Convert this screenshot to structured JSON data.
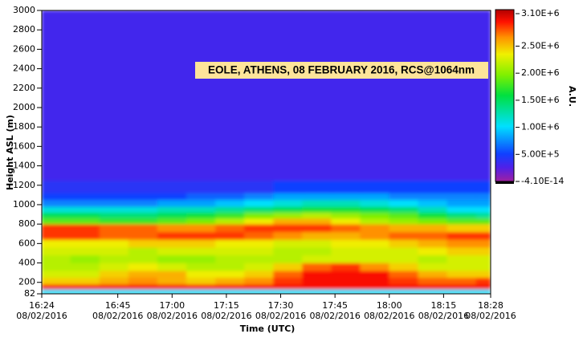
{
  "chart_data": {
    "type": "heatmap",
    "annotation": "EOLE, ATHENS, 08 FEBRUARY 2016, RCS@1064nm",
    "x_label": "Time (UTC)",
    "y_label": "Height ASL (m)",
    "colorbar_label": "A.U.",
    "x": [
      "2016-02-08T16:24",
      "2016-02-08T16:32",
      "2016-02-08T16:40",
      "2016-02-08T16:48",
      "2016-02-08T16:56",
      "2016-02-08T17:04",
      "2016-02-08T17:12",
      "2016-02-08T17:20",
      "2016-02-08T17:28",
      "2016-02-08T17:36",
      "2016-02-08T17:44",
      "2016-02-08T17:52",
      "2016-02-08T18:00",
      "2016-02-08T18:08",
      "2016-02-08T18:16",
      "2016-02-08T18:24",
      "2016-02-08T18:28"
    ],
    "y": [
      82,
      130,
      180,
      250,
      320,
      400,
      480,
      560,
      640,
      720,
      800,
      860,
      920,
      980,
      1050,
      1120,
      1250,
      3000
    ],
    "z": [
      [
        1000000,
        1000000,
        1000000,
        1000000,
        1000000,
        1000000,
        1000000,
        1000000,
        1000000,
        1000000,
        1000000,
        1000000,
        1000000,
        1000000,
        1000000,
        1000000
      ],
      [
        2900000,
        2900000,
        2900000,
        2900000,
        2900000,
        2900000,
        2900000,
        2900000,
        2900000,
        2900000,
        2900000,
        2900000,
        2900000,
        2900000,
        2900000,
        2900000
      ],
      [
        2400000,
        2400000,
        2500000,
        2600000,
        2500000,
        2400000,
        2500000,
        2600000,
        2800000,
        2900000,
        2900000,
        2900000,
        2800000,
        2700000,
        2700000,
        2800000
      ],
      [
        2200000,
        2200000,
        2400000,
        2500000,
        2500000,
        2300000,
        2300000,
        2400000,
        2700000,
        2900000,
        2900000,
        2900000,
        2700000,
        2500000,
        2400000,
        2400000
      ],
      [
        2100000,
        2100000,
        2200000,
        2300000,
        2200000,
        2100000,
        2100000,
        2200000,
        2400000,
        2700000,
        2800000,
        2600000,
        2400000,
        2200000,
        2200000,
        2200000
      ],
      [
        2100000,
        2000000,
        2100000,
        2100000,
        2000000,
        2000000,
        2100000,
        2100000,
        2100000,
        2200000,
        2200000,
        2200000,
        2200000,
        2100000,
        2200000,
        2200000
      ],
      [
        2200000,
        2200000,
        2200000,
        2100000,
        2200000,
        2200000,
        2200000,
        2200000,
        2100000,
        2100000,
        2200000,
        2200000,
        2200000,
        2300000,
        2400000,
        2400000
      ],
      [
        2300000,
        2300000,
        2300000,
        2400000,
        2400000,
        2400000,
        2300000,
        2300000,
        2200000,
        2200000,
        2300000,
        2300000,
        2400000,
        2500000,
        2600000,
        2600000
      ],
      [
        2800000,
        2800000,
        2700000,
        2700000,
        2800000,
        2800000,
        2800000,
        2700000,
        2600000,
        2500000,
        2500000,
        2600000,
        2700000,
        2700000,
        2800000,
        2800000
      ],
      [
        2800000,
        2800000,
        2700000,
        2700000,
        2600000,
        2600000,
        2700000,
        2800000,
        2800000,
        2800000,
        2700000,
        2600000,
        2500000,
        2500000,
        2400000,
        2400000
      ],
      [
        1800000,
        1800000,
        1700000,
        1700000,
        1800000,
        1900000,
        2100000,
        2300000,
        2500000,
        2500000,
        2300000,
        2100000,
        2000000,
        1900000,
        1800000,
        1800000
      ],
      [
        1500000,
        1500000,
        1400000,
        1400000,
        1500000,
        1600000,
        1700000,
        1900000,
        2000000,
        2100000,
        2000000,
        1900000,
        1800000,
        1600000,
        1400000,
        1300000
      ],
      [
        1100000,
        1100000,
        1100000,
        1100000,
        1200000,
        1200000,
        1300000,
        1400000,
        1500000,
        1600000,
        1600000,
        1500000,
        1400000,
        1200000,
        1000000,
        1000000
      ],
      [
        700000,
        700000,
        700000,
        700000,
        800000,
        800000,
        900000,
        1000000,
        1100000,
        1200000,
        1200000,
        1100000,
        1000000,
        900000,
        800000,
        800000
      ],
      [
        500000,
        500000,
        500000,
        500000,
        500000,
        600000,
        600000,
        700000,
        800000,
        800000,
        800000,
        800000,
        700000,
        700000,
        700000,
        700000
      ],
      [
        400000,
        400000,
        400000,
        400000,
        400000,
        400000,
        400000,
        400000,
        500000,
        500000,
        500000,
        500000,
        500000,
        500000,
        500000,
        500000
      ],
      [
        300000,
        300000,
        300000,
        300000,
        300000,
        300000,
        300000,
        300000,
        300000,
        300000,
        300000,
        300000,
        300000,
        300000,
        300000,
        300000
      ]
    ],
    "xlim": [
      "2016-02-08T16:24",
      "2016-02-08T18:28"
    ],
    "xticks": [
      {
        "value": "2016-02-08T16:24",
        "label": [
          "16:24",
          "08/02/2016"
        ]
      },
      {
        "value": "2016-02-08T16:45",
        "label": [
          "16:45",
          "08/02/2016"
        ]
      },
      {
        "value": "2016-02-08T17:00",
        "label": [
          "17:00",
          "08/02/2016"
        ]
      },
      {
        "value": "2016-02-08T17:15",
        "label": [
          "17:15",
          "08/02/2016"
        ]
      },
      {
        "value": "2016-02-08T17:30",
        "label": [
          "17:30",
          "08/02/2016"
        ]
      },
      {
        "value": "2016-02-08T17:45",
        "label": [
          "17:45",
          "08/02/2016"
        ]
      },
      {
        "value": "2016-02-08T18:00",
        "label": [
          "18:00",
          "08/02/2016"
        ]
      },
      {
        "value": "2016-02-08T18:15",
        "label": [
          "18:15",
          "08/02/2016"
        ]
      },
      {
        "value": "2016-02-08T18:28",
        "label": [
          "18:28",
          "08/02/2016"
        ]
      }
    ],
    "ylim": [
      82,
      3000
    ],
    "yticks": [
      82,
      200,
      400,
      600,
      800,
      1000,
      1200,
      1400,
      1600,
      1800,
      2000,
      2200,
      2400,
      2600,
      2800,
      3000
    ],
    "clim": [
      -4.1e-14,
      3100000
    ],
    "cticks": [
      {
        "value": 3100000,
        "label": "3.10E+6"
      },
      {
        "value": 2500000,
        "label": "2.50E+6"
      },
      {
        "value": 2000000,
        "label": "2.00E+6"
      },
      {
        "value": 1500000,
        "label": "1.50E+6"
      },
      {
        "value": 1000000,
        "label": "1.00E+6"
      },
      {
        "value": 500000,
        "label": "5.00E+5"
      },
      {
        "value": -4.1e-14,
        "label": "-4.10E-14"
      }
    ],
    "colorscale": [
      [
        0,
        "#a020a0"
      ],
      [
        0.08,
        "#5020e8"
      ],
      [
        0.16,
        "#1040ff"
      ],
      [
        0.32,
        "#00e0ff"
      ],
      [
        0.5,
        "#00e040"
      ],
      [
        0.62,
        "#80f000"
      ],
      [
        0.74,
        "#f0f000"
      ],
      [
        0.84,
        "#ff9000"
      ],
      [
        0.93,
        "#ff1000"
      ],
      [
        1,
        "#b00000"
      ]
    ]
  }
}
